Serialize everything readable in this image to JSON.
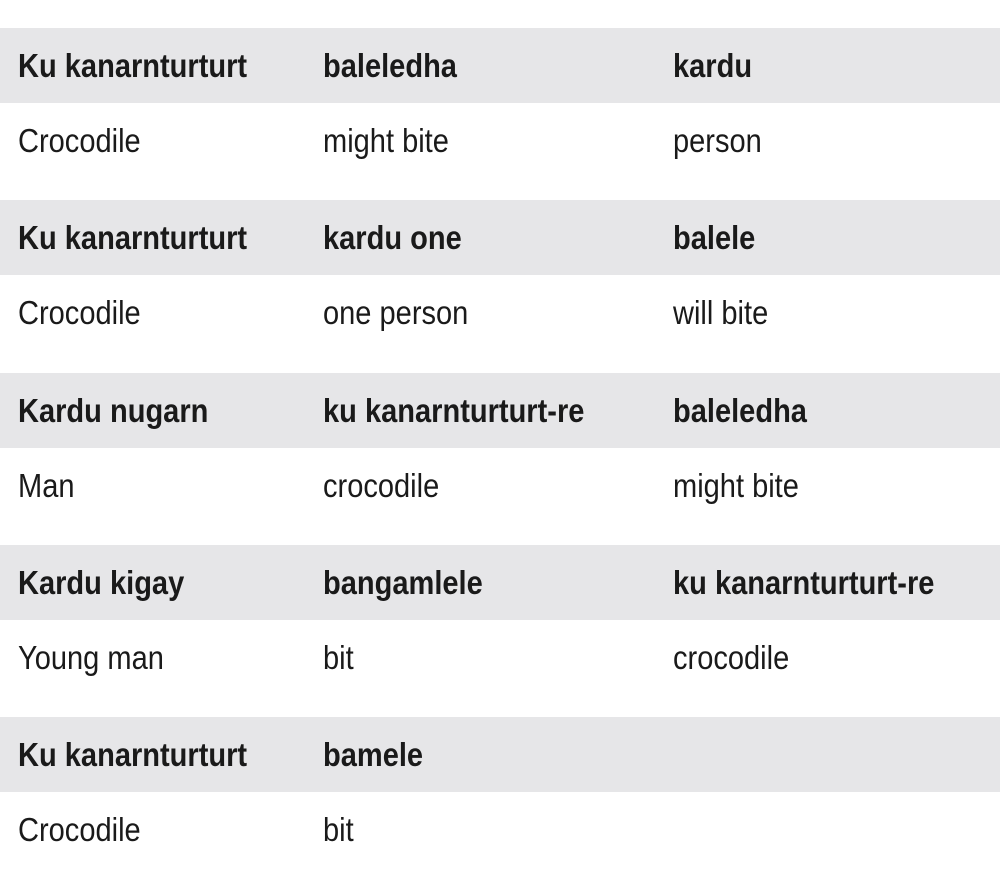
{
  "table": {
    "groups": [
      {
        "header": [
          "Ku kanarnturturt",
          "baleledha",
          "kardu"
        ],
        "translation": [
          "Crocodile",
          "might bite",
          "person"
        ]
      },
      {
        "header": [
          "Ku kanarnturturt",
          "kardu one",
          "balele"
        ],
        "translation": [
          "Crocodile",
          "one person",
          "will bite"
        ]
      },
      {
        "header": [
          "Kardu nugarn",
          "ku kanarnturturt-re",
          "baleledha"
        ],
        "translation": [
          "Man",
          "crocodile",
          "might bite"
        ]
      },
      {
        "header": [
          "Kardu kigay",
          "bangamlele",
          "ku kanarnturturt-re"
        ],
        "translation": [
          "Young man",
          "bit",
          "crocodile"
        ]
      },
      {
        "header": [
          "Ku kanarnturturt",
          "bamele",
          ""
        ],
        "translation": [
          "Crocodile",
          "bit",
          ""
        ]
      }
    ]
  }
}
